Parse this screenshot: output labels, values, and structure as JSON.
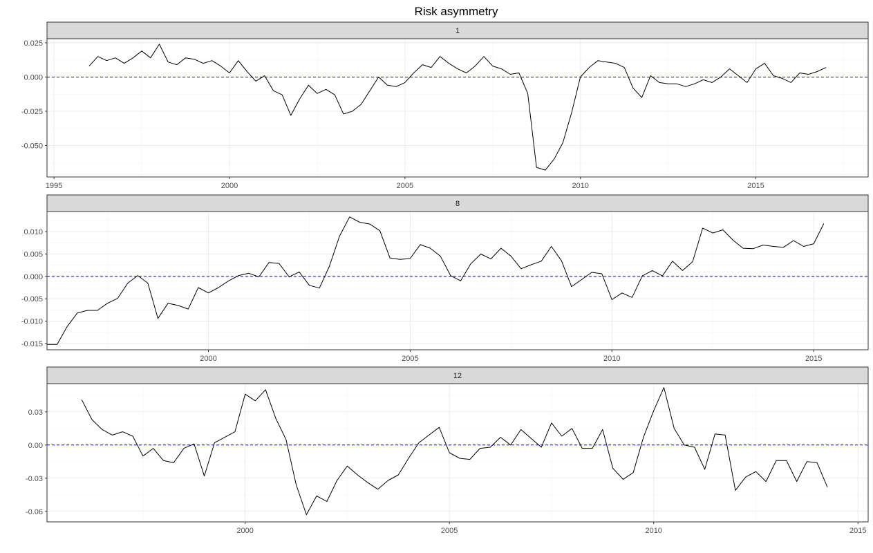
{
  "title": "Risk asymmetry",
  "colors": {
    "line": "#000000",
    "reference_line": "#0000CD",
    "strip_fill": "#D9D9D9",
    "grid_major": "#EBEBEB",
    "grid_minor": "#F5F5F5",
    "axis_text": "#4D4D4D",
    "panel_border": "#333333"
  },
  "chart_data": [
    {
      "type": "line",
      "title": "1",
      "reference_line": 0,
      "x_range": [
        1994.8,
        2018.2
      ],
      "y_range": [
        -0.073,
        0.028
      ],
      "x_ticks": [
        1995,
        2000,
        2005,
        2010,
        2015
      ],
      "x_tick_labels": [
        "1995",
        "2000",
        "2005",
        "2010",
        "2015"
      ],
      "y_ticks": [
        0.025,
        0.0,
        -0.025,
        -0.05
      ],
      "y_tick_labels": [
        "0.025",
        "0.000",
        "-0.025",
        "-0.050"
      ],
      "x": [
        1996.0,
        1996.25,
        1996.5,
        1996.75,
        1997.0,
        1997.25,
        1997.5,
        1997.75,
        1998.0,
        1998.25,
        1998.5,
        1998.75,
        1999.0,
        1999.25,
        1999.5,
        1999.75,
        2000.0,
        2000.25,
        2000.5,
        2000.75,
        2001.0,
        2001.25,
        2001.5,
        2001.75,
        2002.0,
        2002.25,
        2002.5,
        2002.75,
        2003.0,
        2003.25,
        2003.5,
        2003.75,
        2004.0,
        2004.25,
        2004.5,
        2004.75,
        2005.0,
        2005.25,
        2005.5,
        2005.75,
        2006.0,
        2006.25,
        2006.5,
        2006.75,
        2007.0,
        2007.25,
        2007.5,
        2007.75,
        2008.0,
        2008.25,
        2008.5,
        2008.75,
        2009.0,
        2009.25,
        2009.5,
        2009.75,
        2010.0,
        2010.25,
        2010.5,
        2010.75,
        2011.0,
        2011.25,
        2011.5,
        2011.75,
        2012.0,
        2012.25,
        2012.5,
        2012.75,
        2013.0,
        2013.25,
        2013.5,
        2013.75,
        2014.0,
        2014.25,
        2014.5,
        2014.75,
        2015.0,
        2015.25,
        2015.5,
        2015.75,
        2016.0,
        2016.25,
        2016.5,
        2016.75,
        2017.0
      ],
      "y": [
        0.008,
        0.015,
        0.012,
        0.014,
        0.01,
        0.014,
        0.019,
        0.014,
        0.024,
        0.011,
        0.009,
        0.014,
        0.013,
        0.01,
        0.012,
        0.008,
        0.003,
        0.012,
        0.004,
        -0.003,
        0.001,
        -0.01,
        -0.013,
        -0.028,
        -0.016,
        -0.006,
        -0.012,
        -0.009,
        -0.013,
        -0.027,
        -0.025,
        -0.02,
        -0.01,
        -0.0,
        -0.006,
        -0.007,
        -0.004,
        0.003,
        0.009,
        0.007,
        0.015,
        0.01,
        0.006,
        0.003,
        0.008,
        0.015,
        0.008,
        0.006,
        0.002,
        0.003,
        -0.012,
        -0.066,
        -0.068,
        -0.06,
        -0.048,
        -0.026,
        -0.0,
        0.007,
        0.012,
        0.011,
        0.01,
        0.007,
        -0.008,
        -0.015,
        0.001,
        -0.004,
        -0.005,
        -0.005,
        -0.007,
        -0.005,
        -0.002,
        -0.004,
        0.0,
        0.006,
        0.001,
        -0.004,
        0.006,
        0.01,
        0.001,
        -0.001,
        -0.004,
        0.003,
        0.002,
        0.004,
        0.007
      ]
    },
    {
      "type": "line",
      "title": "8",
      "reference_line": 0,
      "x_range": [
        1996.0,
        2016.35
      ],
      "y_range": [
        -0.0164,
        0.0145
      ],
      "x_ticks": [
        2000,
        2005,
        2010,
        2015
      ],
      "x_tick_labels": [
        "2000",
        "2005",
        "2010",
        "2015"
      ],
      "y_ticks": [
        0.01,
        0.005,
        0.0,
        -0.005,
        -0.01,
        -0.015
      ],
      "y_tick_labels": [
        "0.010",
        "0.005",
        "0.000",
        "-0.005",
        "-0.010",
        "-0.015"
      ],
      "x": [
        1996.0,
        1996.25,
        1996.5,
        1996.75,
        1997.0,
        1997.25,
        1997.5,
        1997.75,
        1998.0,
        1998.25,
        1998.5,
        1998.75,
        1999.0,
        1999.25,
        1999.5,
        1999.75,
        2000.0,
        2000.25,
        2000.5,
        2000.75,
        2001.0,
        2001.25,
        2001.5,
        2001.75,
        2002.0,
        2002.25,
        2002.5,
        2002.75,
        2003.0,
        2003.25,
        2003.5,
        2003.75,
        2004.0,
        2004.25,
        2004.5,
        2004.75,
        2005.0,
        2005.25,
        2005.5,
        2005.75,
        2006.0,
        2006.25,
        2006.5,
        2006.75,
        2007.0,
        2007.25,
        2007.5,
        2007.75,
        2008.0,
        2008.25,
        2008.5,
        2008.75,
        2009.0,
        2009.25,
        2009.5,
        2009.75,
        2010.0,
        2010.25,
        2010.5,
        2010.75,
        2011.0,
        2011.25,
        2011.5,
        2011.75,
        2012.0,
        2012.25,
        2012.5,
        2012.75,
        2013.0,
        2013.25,
        2013.5,
        2013.75,
        2014.0,
        2014.25,
        2014.5,
        2014.75,
        2015.0,
        2015.25
      ],
      "y": [
        -0.0152,
        -0.0152,
        -0.0112,
        -0.0082,
        -0.0076,
        -0.0076,
        -0.006,
        -0.0049,
        -0.0015,
        0.0002,
        -0.0015,
        -0.0094,
        -0.006,
        -0.0065,
        -0.0073,
        -0.0025,
        -0.0037,
        -0.0025,
        -0.001,
        0.0002,
        0.0007,
        -0.0001,
        0.0031,
        0.0029,
        -0.0001,
        0.001,
        -0.002,
        -0.0026,
        0.0023,
        0.009,
        0.0133,
        0.0121,
        0.0117,
        0.0102,
        0.0041,
        0.0038,
        0.004,
        0.0071,
        0.0063,
        0.0045,
        0.0002,
        -0.001,
        0.0028,
        0.005,
        0.0039,
        0.0063,
        0.0045,
        0.0017,
        0.0026,
        0.0034,
        0.0067,
        0.0035,
        -0.0023,
        -0.0007,
        0.0009,
        0.0006,
        -0.0052,
        -0.0037,
        -0.0047,
        0.0001,
        0.0013,
        0.0001,
        0.0034,
        0.0013,
        0.0033,
        0.0108,
        0.0097,
        0.0104,
        0.0081,
        0.0063,
        0.0062,
        0.007,
        0.0067,
        0.0065,
        0.008,
        0.0067,
        0.0073,
        0.0118
      ]
    },
    {
      "type": "line",
      "title": "12",
      "reference_line": 0,
      "x_range": [
        1995.15,
        2015.25
      ],
      "y_range": [
        -0.0695,
        0.0555
      ],
      "x_ticks": [
        2000,
        2005,
        2010,
        2015
      ],
      "x_tick_labels": [
        "2000",
        "2005",
        "2010",
        "2015"
      ],
      "y_ticks": [
        0.03,
        0.0,
        -0.03,
        -0.06
      ],
      "y_tick_labels": [
        "0.03",
        "0.00",
        "-0.03",
        "-0.06"
      ],
      "x": [
        1996.0,
        1996.25,
        1996.5,
        1996.75,
        1997.0,
        1997.25,
        1997.5,
        1997.75,
        1998.0,
        1998.25,
        1998.5,
        1998.75,
        1999.0,
        1999.25,
        1999.5,
        1999.75,
        2000.0,
        2000.25,
        2000.5,
        2000.75,
        2001.0,
        2001.25,
        2001.5,
        2001.75,
        2002.0,
        2002.25,
        2002.5,
        2002.75,
        2003.0,
        2003.25,
        2003.5,
        2003.75,
        2004.0,
        2004.25,
        2004.5,
        2004.75,
        2005.0,
        2005.25,
        2005.5,
        2005.75,
        2006.0,
        2006.25,
        2006.5,
        2006.75,
        2007.0,
        2007.25,
        2007.5,
        2007.75,
        2008.0,
        2008.25,
        2008.5,
        2008.75,
        2009.0,
        2009.25,
        2009.5,
        2009.75,
        2010.0,
        2010.25,
        2010.5,
        2010.75,
        2011.0,
        2011.25,
        2011.5,
        2011.75,
        2012.0,
        2012.25,
        2012.5,
        2012.75,
        2013.0,
        2013.25,
        2013.5,
        2013.75,
        2014.0,
        2014.25
      ],
      "y": [
        0.041,
        0.023,
        0.014,
        0.009,
        0.012,
        0.008,
        -0.01,
        -0.003,
        -0.014,
        -0.016,
        -0.003,
        0.001,
        -0.028,
        0.002,
        0.007,
        0.012,
        0.046,
        0.04,
        0.05,
        0.024,
        0.005,
        -0.036,
        -0.063,
        -0.046,
        -0.051,
        -0.032,
        -0.019,
        -0.027,
        -0.034,
        -0.04,
        -0.032,
        -0.027,
        -0.012,
        0.002,
        0.009,
        0.016,
        -0.007,
        -0.012,
        -0.013,
        -0.003,
        -0.002,
        0.007,
        0.0,
        0.014,
        0.006,
        -0.002,
        0.02,
        0.008,
        0.015,
        -0.003,
        -0.003,
        0.014,
        -0.021,
        -0.031,
        -0.025,
        0.007,
        0.031,
        0.052,
        0.015,
        0.0,
        -0.002,
        -0.022,
        0.01,
        0.009,
        -0.041,
        -0.029,
        -0.024,
        -0.033,
        -0.014,
        -0.014,
        -0.033,
        -0.015,
        -0.016,
        -0.038
      ]
    }
  ]
}
